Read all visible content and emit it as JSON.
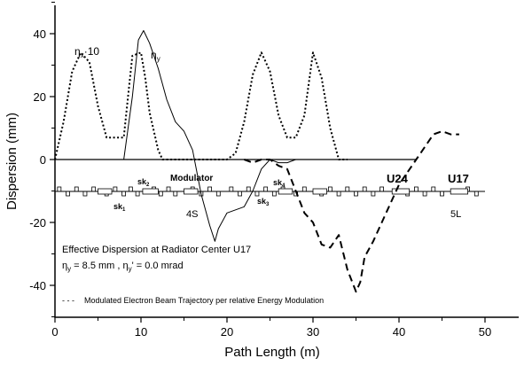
{
  "chart_data": {
    "type": "line",
    "xlabel": "Path Length (m)",
    "ylabel": "Dispersion (mm)",
    "xlim": [
      0,
      55
    ],
    "ylim": [
      -50,
      50
    ],
    "xticks": [
      0,
      10,
      20,
      30,
      40,
      50
    ],
    "yticks": [
      -40,
      -20,
      0,
      20,
      40
    ],
    "grid": false,
    "series": [
      {
        "name": "η_x·10",
        "style": "dotted",
        "x": [
          0,
          1,
          2,
          3,
          4,
          5,
          6,
          7,
          8,
          8.5,
          9,
          10,
          10.5,
          11,
          12,
          12.5,
          13,
          14,
          20,
          21,
          22,
          23,
          24,
          25,
          26,
          27,
          28,
          29,
          30,
          31,
          32,
          33,
          34
        ],
        "y": [
          0,
          12,
          28,
          34,
          31,
          17,
          7,
          7,
          7,
          20,
          33,
          34,
          26,
          15,
          3,
          0,
          0,
          0,
          0,
          2,
          12,
          27,
          34,
          28,
          14,
          7,
          7,
          14,
          34,
          26,
          10,
          0,
          0
        ]
      },
      {
        "name": "η_y",
        "style": "solid",
        "x": [
          0,
          8,
          9,
          9.7,
          10.3,
          11,
          12,
          13,
          14,
          15,
          16,
          17,
          18,
          18.6,
          19,
          20,
          21,
          22,
          23,
          24,
          25,
          26,
          27,
          28,
          33
        ],
        "y": [
          0,
          0,
          20,
          38,
          41,
          37,
          29,
          19,
          12,
          9,
          3,
          -11,
          -21,
          -26,
          -22,
          -17,
          -16,
          -15,
          -10,
          -3,
          0,
          -1,
          -1,
          0,
          0
        ]
      },
      {
        "name": "Modulated Electron Beam Trajectory per relative Energy Modulation",
        "style": "dashed",
        "x": [
          22,
          23,
          24,
          25,
          26,
          27,
          28,
          29,
          30,
          31,
          32,
          33,
          34,
          35,
          35.5,
          36,
          37,
          38,
          39,
          40,
          41,
          42,
          43,
          44,
          45,
          46,
          47
        ],
        "y": [
          0,
          -1,
          0,
          0,
          -2,
          -3,
          -10,
          -17,
          -20,
          -27,
          -28,
          -24,
          -35,
          -42,
          -39,
          -31,
          -26,
          -20,
          -14,
          -8,
          -4,
          0,
          4,
          8,
          9,
          8,
          8
        ]
      }
    ],
    "annotations": {
      "eta_x_label": "η",
      "eta_x_sub": "x",
      "eta_x_suffix": "10",
      "eta_y_label": "η",
      "eta_y_sub": "y",
      "modulator": "Modulator",
      "sk1": "sk",
      "sk1_sub": "1",
      "sk2": "sk",
      "sk2_sub": "2",
      "sk3": "sk",
      "sk3_sub": "3",
      "sk4": "sk",
      "sk4_sub": "4",
      "u24": "U24",
      "u17": "U17",
      "s4": "4S",
      "l5": "5L",
      "text_line1": "Effective Dispersion at Radiator Center U17",
      "text_line2_a": "η",
      "text_line2_a_sub": "y",
      "text_line2_b": " = 8.5 mm  ,  η",
      "text_line2_b_sub": "y",
      "text_line2_c": "' = 0.0 mrad",
      "legend_dash": "- - -",
      "legend_text": "Modulated Electron Beam Trajectory per relative Energy Modulation"
    }
  }
}
